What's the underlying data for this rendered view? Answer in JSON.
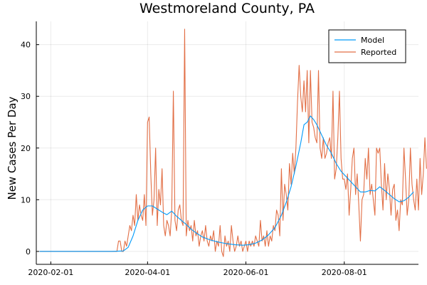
{
  "chart_data": {
    "type": "line",
    "title": "Westmoreland County, PA",
    "xlabel": "",
    "ylabel": "New Cases Per Day",
    "x_type": "date",
    "xlim": [
      "2020-01-23",
      "2020-09-16"
    ],
    "ylim": [
      -2.5,
      44.5
    ],
    "x_ticks": [
      "2020-02-01",
      "2020-04-01",
      "2020-06-01",
      "2020-08-01"
    ],
    "y_ticks": [
      0,
      10,
      20,
      30,
      40
    ],
    "grid": true,
    "legend_position": "top-right",
    "series": [
      {
        "name": "Model",
        "color": "#009AFA",
        "points": [
          [
            "2020-01-25",
            0
          ],
          [
            "2020-03-10",
            0
          ],
          [
            "2020-03-17",
            0.1
          ],
          [
            "2020-03-20",
            0.8
          ],
          [
            "2020-03-23",
            3
          ],
          [
            "2020-03-26",
            6
          ],
          [
            "2020-03-29",
            8
          ],
          [
            "2020-04-01",
            8.8
          ],
          [
            "2020-04-04",
            8.8
          ],
          [
            "2020-04-07",
            8.2
          ],
          [
            "2020-04-10",
            7.6
          ],
          [
            "2020-04-13",
            7.1
          ],
          [
            "2020-04-16",
            7.8
          ],
          [
            "2020-04-19",
            6.8
          ],
          [
            "2020-04-22",
            6.0
          ],
          [
            "2020-04-25",
            5.2
          ],
          [
            "2020-04-28",
            4.3
          ],
          [
            "2020-05-01",
            3.6
          ],
          [
            "2020-05-05",
            2.8
          ],
          [
            "2020-05-10",
            2.2
          ],
          [
            "2020-05-15",
            1.8
          ],
          [
            "2020-05-20",
            1.5
          ],
          [
            "2020-05-25",
            1.3
          ],
          [
            "2020-05-30",
            1.2
          ],
          [
            "2020-06-03",
            1.3
          ],
          [
            "2020-06-07",
            1.6
          ],
          [
            "2020-06-11",
            2.2
          ],
          [
            "2020-06-15",
            3.2
          ],
          [
            "2020-06-19",
            4.6
          ],
          [
            "2020-06-23",
            7.0
          ],
          [
            "2020-06-26",
            9.5
          ],
          [
            "2020-06-29",
            12.5
          ],
          [
            "2020-07-02",
            16.5
          ],
          [
            "2020-07-05",
            21
          ],
          [
            "2020-07-07",
            24.5
          ],
          [
            "2020-07-09",
            25.0
          ],
          [
            "2020-07-11",
            26.2
          ],
          [
            "2020-07-13",
            25.5
          ],
          [
            "2020-07-15",
            24.5
          ],
          [
            "2020-07-18",
            22.5
          ],
          [
            "2020-07-21",
            20.5
          ],
          [
            "2020-07-24",
            19.0
          ],
          [
            "2020-07-27",
            17.0
          ],
          [
            "2020-07-30",
            15.5
          ],
          [
            "2020-08-02",
            14.5
          ],
          [
            "2020-08-05",
            13.5
          ],
          [
            "2020-08-08",
            12.5
          ],
          [
            "2020-08-11",
            11.5
          ],
          [
            "2020-08-14",
            11.5
          ],
          [
            "2020-08-17",
            11.8
          ],
          [
            "2020-08-20",
            11.7
          ],
          [
            "2020-08-23",
            12.5
          ],
          [
            "2020-08-26",
            11.8
          ],
          [
            "2020-08-29",
            11.0
          ],
          [
            "2020-09-01",
            10.2
          ],
          [
            "2020-09-04",
            9.6
          ],
          [
            "2020-09-07",
            9.8
          ],
          [
            "2020-09-10",
            10.5
          ],
          [
            "2020-09-13",
            11.5
          ]
        ]
      },
      {
        "name": "Reported",
        "color": "#E26F46",
        "points": [
          [
            "2020-01-25",
            0
          ],
          [
            "2020-03-13",
            0
          ],
          [
            "2020-03-14",
            2
          ],
          [
            "2020-03-15",
            2
          ],
          [
            "2020-03-16",
            0
          ],
          [
            "2020-03-17",
            0
          ],
          [
            "2020-03-18",
            2
          ],
          [
            "2020-03-19",
            1
          ],
          [
            "2020-03-20",
            3
          ],
          [
            "2020-03-21",
            5
          ],
          [
            "2020-03-22",
            4
          ],
          [
            "2020-03-23",
            7
          ],
          [
            "2020-03-24",
            5
          ],
          [
            "2020-03-25",
            11
          ],
          [
            "2020-03-26",
            6
          ],
          [
            "2020-03-27",
            9
          ],
          [
            "2020-03-28",
            7
          ],
          [
            "2020-03-29",
            6
          ],
          [
            "2020-03-30",
            11
          ],
          [
            "2020-03-31",
            5
          ],
          [
            "2020-04-01",
            25
          ],
          [
            "2020-04-02",
            26
          ],
          [
            "2020-04-03",
            15
          ],
          [
            "2020-04-04",
            7
          ],
          [
            "2020-04-05",
            10
          ],
          [
            "2020-04-06",
            20
          ],
          [
            "2020-04-07",
            5
          ],
          [
            "2020-04-08",
            12
          ],
          [
            "2020-04-09",
            9
          ],
          [
            "2020-04-10",
            16
          ],
          [
            "2020-04-11",
            5
          ],
          [
            "2020-04-12",
            3
          ],
          [
            "2020-04-13",
            6
          ],
          [
            "2020-04-14",
            5
          ],
          [
            "2020-04-15",
            3
          ],
          [
            "2020-04-16",
            8
          ],
          [
            "2020-04-17",
            31
          ],
          [
            "2020-04-18",
            6
          ],
          [
            "2020-04-19",
            4
          ],
          [
            "2020-04-20",
            8
          ],
          [
            "2020-04-21",
            9
          ],
          [
            "2020-04-22",
            6
          ],
          [
            "2020-04-23",
            5
          ],
          [
            "2020-04-24",
            43
          ],
          [
            "2020-04-25",
            3
          ],
          [
            "2020-04-26",
            6
          ],
          [
            "2020-04-27",
            4
          ],
          [
            "2020-04-28",
            5
          ],
          [
            "2020-04-29",
            2
          ],
          [
            "2020-04-30",
            6
          ],
          [
            "2020-05-01",
            3
          ],
          [
            "2020-05-02",
            4
          ],
          [
            "2020-05-03",
            1
          ],
          [
            "2020-05-04",
            3
          ],
          [
            "2020-05-05",
            4
          ],
          [
            "2020-05-06",
            2
          ],
          [
            "2020-05-07",
            5
          ],
          [
            "2020-05-08",
            2
          ],
          [
            "2020-05-09",
            1
          ],
          [
            "2020-05-10",
            3
          ],
          [
            "2020-05-11",
            2
          ],
          [
            "2020-05-12",
            4
          ],
          [
            "2020-05-13",
            0
          ],
          [
            "2020-05-14",
            2
          ],
          [
            "2020-05-15",
            1
          ],
          [
            "2020-05-16",
            5
          ],
          [
            "2020-05-17",
            0
          ],
          [
            "2020-05-18",
            -1
          ],
          [
            "2020-05-19",
            3
          ],
          [
            "2020-05-20",
            1
          ],
          [
            "2020-05-21",
            2
          ],
          [
            "2020-05-22",
            0
          ],
          [
            "2020-05-23",
            5
          ],
          [
            "2020-05-24",
            2
          ],
          [
            "2020-05-25",
            0
          ],
          [
            "2020-05-26",
            1
          ],
          [
            "2020-05-27",
            3
          ],
          [
            "2020-05-28",
            1
          ],
          [
            "2020-05-29",
            2
          ],
          [
            "2020-05-30",
            0
          ],
          [
            "2020-05-31",
            1
          ],
          [
            "2020-06-01",
            2
          ],
          [
            "2020-06-02",
            0
          ],
          [
            "2020-06-03",
            2
          ],
          [
            "2020-06-04",
            1
          ],
          [
            "2020-06-05",
            2
          ],
          [
            "2020-06-06",
            1
          ],
          [
            "2020-06-07",
            3
          ],
          [
            "2020-06-08",
            2
          ],
          [
            "2020-06-09",
            1
          ],
          [
            "2020-06-10",
            6
          ],
          [
            "2020-06-11",
            2
          ],
          [
            "2020-06-12",
            3
          ],
          [
            "2020-06-13",
            1
          ],
          [
            "2020-06-14",
            4
          ],
          [
            "2020-06-15",
            1
          ],
          [
            "2020-06-16",
            3
          ],
          [
            "2020-06-17",
            2
          ],
          [
            "2020-06-18",
            5
          ],
          [
            "2020-06-19",
            4
          ],
          [
            "2020-06-20",
            8
          ],
          [
            "2020-06-21",
            7
          ],
          [
            "2020-06-22",
            3
          ],
          [
            "2020-06-23",
            16
          ],
          [
            "2020-06-24",
            6
          ],
          [
            "2020-06-25",
            13
          ],
          [
            "2020-06-26",
            11
          ],
          [
            "2020-06-27",
            8
          ],
          [
            "2020-06-28",
            17
          ],
          [
            "2020-06-29",
            13
          ],
          [
            "2020-06-30",
            19
          ],
          [
            "2020-07-01",
            15
          ],
          [
            "2020-07-02",
            20
          ],
          [
            "2020-07-03",
            29
          ],
          [
            "2020-07-04",
            36
          ],
          [
            "2020-07-05",
            30
          ],
          [
            "2020-07-06",
            27
          ],
          [
            "2020-07-07",
            33
          ],
          [
            "2020-07-08",
            27
          ],
          [
            "2020-07-09",
            35
          ],
          [
            "2020-07-10",
            21
          ],
          [
            "2020-07-11",
            35
          ],
          [
            "2020-07-12",
            25
          ],
          [
            "2020-07-13",
            24
          ],
          [
            "2020-07-14",
            22
          ],
          [
            "2020-07-15",
            21
          ],
          [
            "2020-07-16",
            35
          ],
          [
            "2020-07-17",
            20
          ],
          [
            "2020-07-18",
            18
          ],
          [
            "2020-07-19",
            22
          ],
          [
            "2020-07-20",
            18
          ],
          [
            "2020-07-21",
            19
          ],
          [
            "2020-07-22",
            21
          ],
          [
            "2020-07-23",
            22
          ],
          [
            "2020-07-24",
            18
          ],
          [
            "2020-07-25",
            31
          ],
          [
            "2020-07-26",
            14
          ],
          [
            "2020-07-27",
            16
          ],
          [
            "2020-07-28",
            22
          ],
          [
            "2020-07-29",
            31
          ],
          [
            "2020-07-30",
            18
          ],
          [
            "2020-07-31",
            14
          ],
          [
            "2020-08-01",
            14
          ],
          [
            "2020-08-02",
            12
          ],
          [
            "2020-08-03",
            15
          ],
          [
            "2020-08-04",
            7
          ],
          [
            "2020-08-05",
            12
          ],
          [
            "2020-08-06",
            18
          ],
          [
            "2020-08-07",
            20
          ],
          [
            "2020-08-08",
            11
          ],
          [
            "2020-08-09",
            15
          ],
          [
            "2020-08-10",
            9
          ],
          [
            "2020-08-11",
            2
          ],
          [
            "2020-08-12",
            10
          ],
          [
            "2020-08-13",
            11
          ],
          [
            "2020-08-14",
            18
          ],
          [
            "2020-08-15",
            14
          ],
          [
            "2020-08-16",
            20
          ],
          [
            "2020-08-17",
            11
          ],
          [
            "2020-08-18",
            13
          ],
          [
            "2020-08-19",
            10
          ],
          [
            "2020-08-20",
            7
          ],
          [
            "2020-08-21",
            20
          ],
          [
            "2020-08-22",
            19
          ],
          [
            "2020-08-23",
            20
          ],
          [
            "2020-08-24",
            13
          ],
          [
            "2020-08-25",
            8
          ],
          [
            "2020-08-26",
            17
          ],
          [
            "2020-08-27",
            10
          ],
          [
            "2020-08-28",
            15
          ],
          [
            "2020-08-29",
            12
          ],
          [
            "2020-08-30",
            7
          ],
          [
            "2020-08-31",
            12
          ],
          [
            "2020-09-01",
            13
          ],
          [
            "2020-09-02",
            6
          ],
          [
            "2020-09-03",
            8
          ],
          [
            "2020-09-04",
            4
          ],
          [
            "2020-09-05",
            10
          ],
          [
            "2020-09-06",
            9
          ],
          [
            "2020-09-07",
            20
          ],
          [
            "2020-09-08",
            14
          ],
          [
            "2020-09-09",
            7
          ],
          [
            "2020-09-10",
            10
          ],
          [
            "2020-09-11",
            20
          ],
          [
            "2020-09-12",
            13
          ],
          [
            "2020-09-13",
            10
          ],
          [
            "2020-09-14",
            8
          ],
          [
            "2020-09-15",
            14
          ],
          [
            "2020-09-16",
            8
          ],
          [
            "2020-09-17",
            18
          ],
          [
            "2020-09-18",
            11
          ],
          [
            "2020-09-19",
            15
          ],
          [
            "2020-09-20",
            22
          ],
          [
            "2020-09-21",
            16
          ]
        ]
      }
    ]
  }
}
